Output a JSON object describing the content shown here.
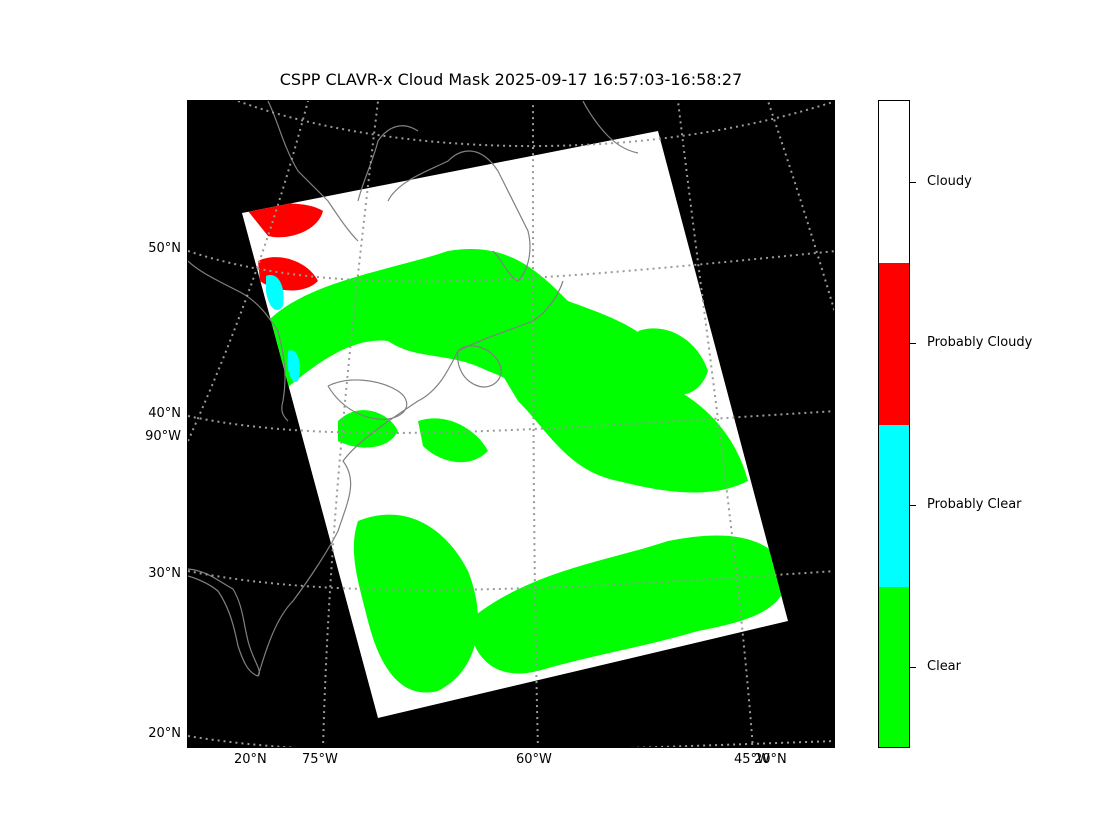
{
  "title": "CSPP CLAVR-x Cloud Mask 2025-09-17 16:57:03-16:58:27",
  "map": {
    "background_color": "#000000",
    "coastline_color": "#808080",
    "gridline_color": "#9a9a9a",
    "gridline_style": "dotted",
    "lat_labels": [
      "50°N",
      "40°N",
      "30°N",
      "20°N"
    ],
    "lon_labels_left": [
      "90°W"
    ],
    "bottom_labels": [
      "20°N",
      "75°W",
      "60°W",
      "45°W",
      "20°N"
    ]
  },
  "colorbar": {
    "categories": [
      {
        "label": "Cloudy",
        "color": "#ffffff"
      },
      {
        "label": "Probably Cloudy",
        "color": "#ff0000"
      },
      {
        "label": "Probably Clear",
        "color": "#00ffff"
      },
      {
        "label": "Clear",
        "color": "#00ff00"
      }
    ]
  }
}
